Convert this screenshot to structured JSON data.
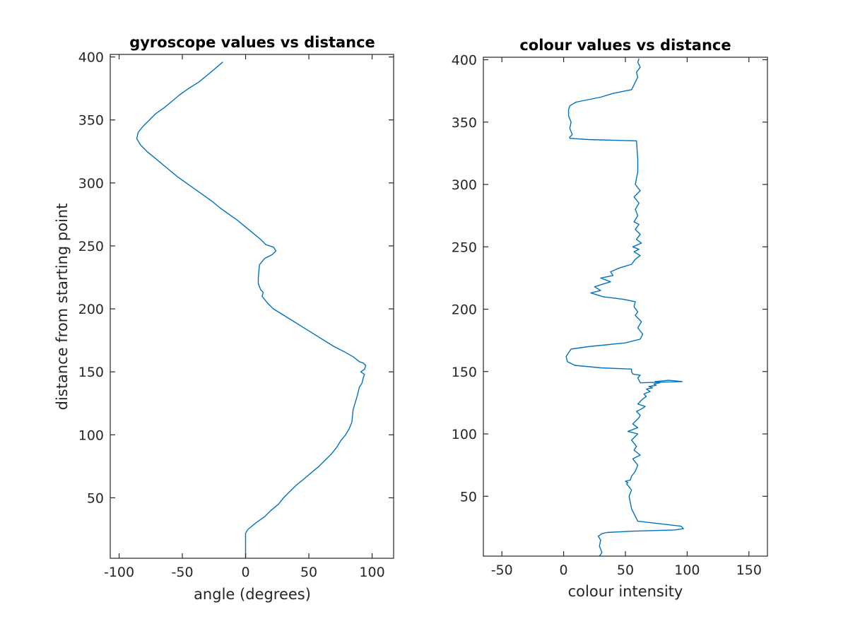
{
  "chart_data": [
    {
      "type": "line",
      "title": "gyroscope values vs distance",
      "xlabel": "angle (degrees)",
      "ylabel": "distance from starting point",
      "xlim": [
        -107,
        117
      ],
      "ylim": [
        2,
        402
      ],
      "xticks": [
        -100,
        -50,
        0,
        50,
        100
      ],
      "yticks": [
        50,
        100,
        150,
        200,
        250,
        300,
        350,
        400
      ],
      "grid": false,
      "series_color": "#0072BD",
      "series": [
        {
          "x": [
            0,
            0,
            0,
            0,
            2,
            8,
            15,
            20,
            26,
            30,
            35,
            40,
            45,
            52,
            58,
            63,
            68,
            72,
            75,
            79,
            82,
            84,
            85,
            88,
            90,
            92,
            93,
            94,
            91,
            94,
            95,
            93,
            90,
            85,
            78,
            70,
            62,
            54,
            46,
            38,
            30,
            22,
            17,
            13,
            14,
            12,
            10,
            10,
            11,
            15,
            21,
            24,
            22,
            16,
            12,
            6,
            0,
            -6,
            -13,
            -20,
            -26,
            -33,
            -40,
            -47,
            -54,
            -60,
            -66,
            -72,
            -78,
            -83,
            -86,
            -85,
            -81,
            -76,
            -71,
            -64,
            -58,
            -52,
            -45,
            -37,
            -31,
            -25,
            -18
          ],
          "y": [
            2,
            10,
            15,
            22,
            25,
            30,
            35,
            40,
            45,
            50,
            55,
            60,
            64,
            70,
            75,
            80,
            85,
            90,
            95,
            100,
            105,
            110,
            120,
            130,
            138,
            141,
            145,
            148,
            150,
            152,
            155,
            157,
            158,
            162,
            166,
            170,
            175,
            180,
            185,
            190,
            195,
            200,
            205,
            210,
            213,
            215,
            220,
            225,
            235,
            240,
            243,
            246,
            249,
            251,
            255,
            260,
            265,
            270,
            275,
            280,
            285,
            290,
            295,
            300,
            305,
            310,
            315,
            320,
            325,
            330,
            335,
            340,
            345,
            350,
            355,
            360,
            365,
            370,
            375,
            380,
            385,
            390,
            396
          ]
        }
      ]
    },
    {
      "type": "line",
      "title": "colour values vs distance",
      "xlabel": "colour intensity",
      "ylabel": "",
      "xlim": [
        -65,
        165
      ],
      "ylim": [
        2,
        402
      ],
      "xticks": [
        -50,
        0,
        50,
        100,
        150
      ],
      "yticks": [
        50,
        100,
        150,
        200,
        250,
        300,
        350,
        400
      ],
      "grid": false,
      "series_color": "#0072BD",
      "series": [
        {
          "x": [
            29,
            31,
            29,
            30,
            28,
            31,
            35,
            55,
            90,
            97,
            95,
            60,
            55,
            53,
            55,
            51,
            52,
            50,
            54,
            55,
            58,
            60,
            56,
            62,
            57,
            59,
            55,
            60,
            52,
            60,
            56,
            58,
            61,
            62,
            59,
            63,
            66,
            60,
            62,
            64,
            67,
            65,
            70,
            67,
            72,
            69,
            75,
            73,
            78,
            74,
            80,
            85,
            96,
            62,
            60,
            62,
            56,
            55,
            55,
            55,
            30,
            9,
            3,
            2,
            4,
            6,
            20,
            50,
            62,
            64,
            60,
            63,
            58,
            60,
            57,
            58,
            48,
            32,
            22,
            30,
            25,
            38,
            30,
            40,
            38,
            45,
            55,
            58,
            62,
            57,
            61,
            56,
            63,
            59,
            62,
            58,
            61,
            57,
            60,
            58,
            61,
            57,
            62,
            58,
            60,
            60,
            59,
            20,
            5,
            5,
            7,
            5,
            6,
            4,
            4,
            5,
            10,
            30,
            40,
            55,
            56,
            58,
            60,
            59,
            62,
            60,
            61
          ],
          "y": [
            2,
            5,
            10,
            15,
            18,
            20,
            21,
            22,
            23,
            24,
            26,
            30,
            40,
            50,
            55,
            60,
            61,
            62,
            63,
            66,
            70,
            75,
            80,
            83,
            87,
            90,
            95,
            100,
            102,
            105,
            108,
            110,
            113,
            115,
            118,
            120,
            122,
            124,
            126,
            128,
            130,
            132,
            134,
            136,
            137,
            138,
            139,
            140,
            141,
            142,
            142.5,
            143,
            142,
            141,
            145,
            147,
            148,
            150,
            151,
            152,
            153,
            155,
            158,
            162,
            165,
            168,
            170,
            173,
            176,
            180,
            185,
            190,
            195,
            198,
            202,
            206,
            208,
            210,
            213,
            215,
            218,
            222,
            225,
            227,
            230,
            233,
            236,
            240,
            243,
            246,
            248,
            250,
            253,
            256,
            260,
            264,
            268,
            270,
            275,
            280,
            285,
            290,
            295,
            300,
            310,
            320,
            335,
            336,
            337,
            338,
            340,
            345,
            350,
            355,
            360,
            363,
            366,
            370,
            373,
            376,
            378,
            382,
            386,
            390,
            394,
            398,
            401
          ]
        }
      ]
    }
  ]
}
